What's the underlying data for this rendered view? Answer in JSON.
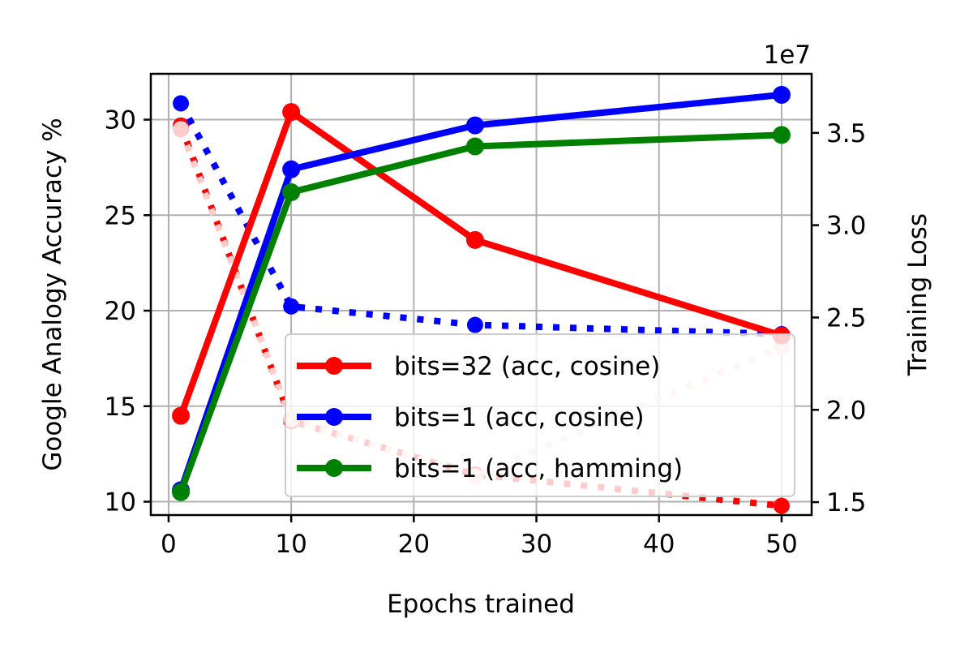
{
  "chart_data": {
    "type": "line",
    "xlabel": "Epochs trained",
    "ylabel": "Google Analogy Accuracy %",
    "y2label": "Training Loss",
    "y2_offset_label": "1e7",
    "x": [
      1,
      10,
      25,
      50
    ],
    "xlim": [
      -1.45,
      52.45
    ],
    "ylim": [
      9.3,
      32.4
    ],
    "y2lim": [
      1.43,
      3.82
    ],
    "xticks": [
      0,
      10,
      20,
      30,
      40,
      50
    ],
    "yticks": [
      10,
      15,
      20,
      25,
      30
    ],
    "y2ticks": [
      1.5,
      2.0,
      2.5,
      3.0,
      3.5
    ],
    "grid": true,
    "legend_position": "lower-right",
    "accuracy_series": [
      {
        "name": "bits=32 (acc, cosine)",
        "color": "#ff0000",
        "values": [
          14.5,
          30.4,
          23.7,
          18.7
        ]
      },
      {
        "name": "bits=1 (acc, cosine)",
        "color": "#0000ff",
        "values": [
          10.6,
          27.4,
          29.7,
          31.3
        ]
      },
      {
        "name": "bits=1 (acc, hamming)",
        "color": "#008000",
        "values": [
          10.5,
          26.2,
          28.6,
          29.2
        ]
      }
    ],
    "loss_series": [
      {
        "color": "#ff0000",
        "values": [
          3.54,
          1.94,
          1.65,
          1.48
        ]
      },
      {
        "color": "#0000ff",
        "values": [
          3.66,
          2.56,
          2.46,
          2.41
        ]
      },
      {
        "color": "#ffcccc",
        "values": [
          3.52,
          1.95,
          1.64,
          2.34
        ]
      }
    ]
  }
}
